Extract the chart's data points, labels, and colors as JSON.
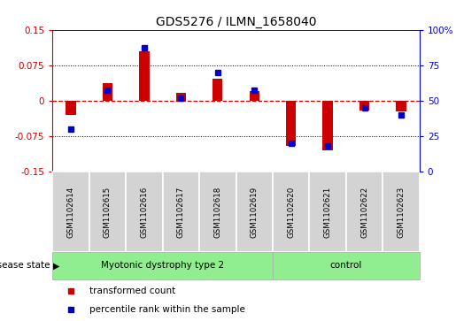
{
  "title": "GDS5276 / ILMN_1658040",
  "samples": [
    "GSM1102614",
    "GSM1102615",
    "GSM1102616",
    "GSM1102617",
    "GSM1102618",
    "GSM1102619",
    "GSM1102620",
    "GSM1102621",
    "GSM1102622",
    "GSM1102623"
  ],
  "red_values": [
    -0.03,
    0.038,
    0.105,
    0.018,
    0.048,
    0.022,
    -0.095,
    -0.105,
    -0.02,
    -0.022
  ],
  "blue_values": [
    30,
    58,
    88,
    52,
    70,
    58,
    20,
    18,
    45,
    40
  ],
  "group1_label": "Myotonic dystrophy type 2",
  "group1_count": 6,
  "group2_label": "control",
  "group2_count": 4,
  "ylim_left": [
    -0.15,
    0.15
  ],
  "ylim_right": [
    0,
    100
  ],
  "yticks_left": [
    -0.15,
    -0.075,
    0,
    0.075,
    0.15
  ],
  "yticks_right": [
    0,
    25,
    50,
    75,
    100
  ],
  "ytick_labels_left": [
    "-0.15",
    "-0.075",
    "0",
    "0.075",
    "0.15"
  ],
  "ytick_labels_right": [
    "0",
    "25",
    "50",
    "75",
    "100%"
  ],
  "dotted_lines": [
    -0.075,
    0.075
  ],
  "red_color": "#CC0000",
  "blue_color": "#0000CC",
  "legend_red": "transformed count",
  "legend_blue": "percentile rank within the sample",
  "disease_state_label": "disease state",
  "group_color": "#90EE90",
  "sample_bg_color": "#D3D3D3",
  "bar_width": 0.5
}
